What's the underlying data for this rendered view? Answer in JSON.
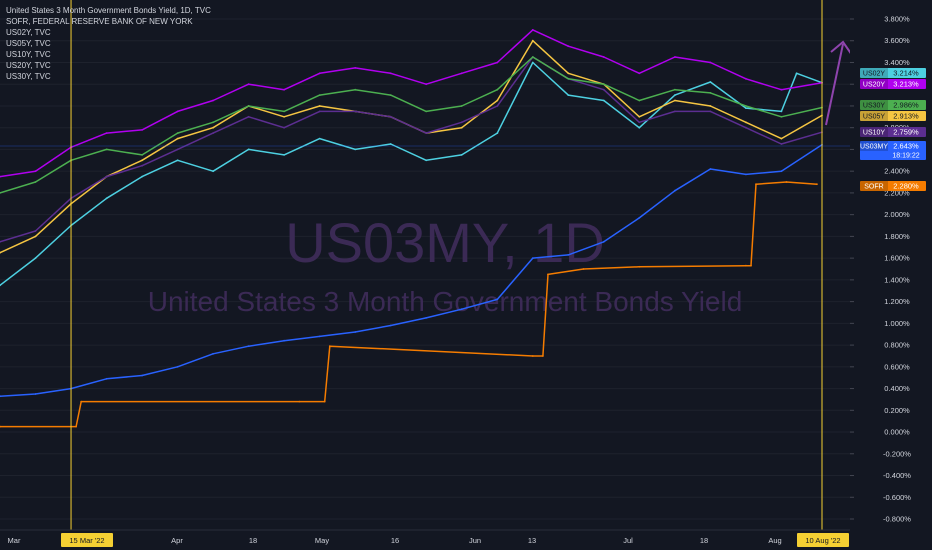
{
  "legend": {
    "title": "United States 3 Month Government Bonds Yield, 1D, TVC",
    "lines": [
      "SOFR, FEDERAL RESERVE BANK OF NEW YORK",
      "US02Y, TVC",
      "US05Y, TVC",
      "US10Y, TVC",
      "US20Y, TVC",
      "US30Y, TVC"
    ]
  },
  "watermark": {
    "symbol": "US03MY, 1D",
    "description": "United States 3 Month Government Bonds Yield"
  },
  "time_axis": {
    "labels": [
      "Mar",
      "15 Mar '22",
      "Apr",
      "18",
      "May",
      "16",
      "Jun",
      "13",
      "Jul",
      "18",
      "Aug",
      "10 Aug '22"
    ]
  },
  "badges": [
    {
      "symbol": "US02Y",
      "value": "3.214%",
      "color": "#4dd0e1"
    },
    {
      "symbol": "US20Y",
      "value": "3.213%",
      "color": "#b100f0"
    },
    {
      "symbol": "US30Y",
      "value": "2.986%",
      "color": "#4caf50"
    },
    {
      "symbol": "US05Y",
      "value": "2.913%",
      "color": "#f5c542"
    },
    {
      "symbol": "US10Y",
      "value": "2.759%",
      "color": "#5c2e91"
    },
    {
      "symbol": "US03MY",
      "value": "2.643%",
      "sub": "18:19:22",
      "color": "#2962ff"
    },
    {
      "symbol": "SOFR",
      "value": "2.280%",
      "color": "#f57c00"
    }
  ],
  "colors": {
    "background": "#131722",
    "grid": "#1e222d",
    "marker_line": "#f5d033",
    "arrow": "#8e44ad",
    "axis_text": "#d1d4dc"
  },
  "chart_data": {
    "type": "line",
    "y_axis": {
      "range": [
        -0.8,
        3.8
      ],
      "tick_labels": [
        "3.800%",
        "3.600%",
        "3.400%",
        "3.200%",
        "3.000%",
        "2.800%",
        "2.600%",
        "2.400%",
        "2.200%",
        "2.000%",
        "1.800%",
        "1.600%",
        "1.400%",
        "1.200%",
        "1.000%",
        "0.800%",
        "0.600%",
        "0.400%",
        "0.200%",
        "0.000%",
        "-0.200%",
        "-0.400%",
        "-0.600%",
        "-0.800%"
      ]
    },
    "x_range": [
      "2022-03-01",
      "2022-08-10"
    ],
    "markers": [
      "2022-03-15",
      "2022-08-10"
    ],
    "grid": true,
    "series": [
      {
        "name": "US03MY",
        "color": "#2962ff",
        "points": [
          [
            "2022-03-01",
            0.33
          ],
          [
            "2022-03-08",
            0.35
          ],
          [
            "2022-03-15",
            0.4
          ],
          [
            "2022-03-22",
            0.49
          ],
          [
            "2022-03-29",
            0.52
          ],
          [
            "2022-04-05",
            0.6
          ],
          [
            "2022-04-12",
            0.72
          ],
          [
            "2022-04-19",
            0.79
          ],
          [
            "2022-04-26",
            0.84
          ],
          [
            "2022-05-03",
            0.88
          ],
          [
            "2022-05-10",
            0.92
          ],
          [
            "2022-05-17",
            0.98
          ],
          [
            "2022-05-24",
            1.05
          ],
          [
            "2022-05-31",
            1.13
          ],
          [
            "2022-06-07",
            1.22
          ],
          [
            "2022-06-14",
            1.6
          ],
          [
            "2022-06-21",
            1.63
          ],
          [
            "2022-06-28",
            1.75
          ],
          [
            "2022-07-05",
            1.97
          ],
          [
            "2022-07-12",
            2.22
          ],
          [
            "2022-07-19",
            2.42
          ],
          [
            "2022-07-26",
            2.37
          ],
          [
            "2022-08-02",
            2.4
          ],
          [
            "2022-08-10",
            2.643
          ]
        ]
      },
      {
        "name": "SOFR",
        "color": "#f57c00",
        "points": [
          [
            "2022-03-01",
            0.05
          ],
          [
            "2022-03-16",
            0.05
          ],
          [
            "2022-03-17",
            0.28
          ],
          [
            "2022-04-29",
            0.28
          ],
          [
            "2022-05-04",
            0.28
          ],
          [
            "2022-05-05",
            0.79
          ],
          [
            "2022-06-14",
            0.7
          ],
          [
            "2022-06-16",
            0.7
          ],
          [
            "2022-06-17",
            1.45
          ],
          [
            "2022-06-24",
            1.5
          ],
          [
            "2022-07-05",
            1.52
          ],
          [
            "2022-07-26",
            1.53
          ],
          [
            "2022-07-27",
            1.53
          ],
          [
            "2022-07-28",
            2.28
          ],
          [
            "2022-08-03",
            2.3
          ],
          [
            "2022-08-09",
            2.28
          ]
        ]
      },
      {
        "name": "US02Y",
        "color": "#4dd0e1",
        "points": [
          [
            "2022-03-01",
            1.35
          ],
          [
            "2022-03-08",
            1.6
          ],
          [
            "2022-03-15",
            1.9
          ],
          [
            "2022-03-22",
            2.15
          ],
          [
            "2022-03-29",
            2.35
          ],
          [
            "2022-04-05",
            2.5
          ],
          [
            "2022-04-12",
            2.4
          ],
          [
            "2022-04-19",
            2.6
          ],
          [
            "2022-04-26",
            2.55
          ],
          [
            "2022-05-03",
            2.7
          ],
          [
            "2022-05-10",
            2.6
          ],
          [
            "2022-05-17",
            2.65
          ],
          [
            "2022-05-24",
            2.5
          ],
          [
            "2022-05-31",
            2.55
          ],
          [
            "2022-06-07",
            2.75
          ],
          [
            "2022-06-14",
            3.4
          ],
          [
            "2022-06-21",
            3.1
          ],
          [
            "2022-06-28",
            3.05
          ],
          [
            "2022-07-05",
            2.8
          ],
          [
            "2022-07-12",
            3.1
          ],
          [
            "2022-07-19",
            3.22
          ],
          [
            "2022-07-26",
            2.98
          ],
          [
            "2022-08-02",
            2.95
          ],
          [
            "2022-08-05",
            3.3
          ],
          [
            "2022-08-10",
            3.214
          ]
        ]
      },
      {
        "name": "US05Y",
        "color": "#f5c542",
        "points": [
          [
            "2022-03-01",
            1.65
          ],
          [
            "2022-03-08",
            1.8
          ],
          [
            "2022-03-15",
            2.1
          ],
          [
            "2022-03-22",
            2.35
          ],
          [
            "2022-03-29",
            2.5
          ],
          [
            "2022-04-05",
            2.7
          ],
          [
            "2022-04-12",
            2.8
          ],
          [
            "2022-04-19",
            3.0
          ],
          [
            "2022-04-26",
            2.9
          ],
          [
            "2022-05-03",
            3.0
          ],
          [
            "2022-05-10",
            2.95
          ],
          [
            "2022-05-17",
            2.9
          ],
          [
            "2022-05-24",
            2.75
          ],
          [
            "2022-05-31",
            2.8
          ],
          [
            "2022-06-07",
            3.05
          ],
          [
            "2022-06-14",
            3.6
          ],
          [
            "2022-06-21",
            3.3
          ],
          [
            "2022-06-28",
            3.2
          ],
          [
            "2022-07-05",
            2.9
          ],
          [
            "2022-07-12",
            3.05
          ],
          [
            "2022-07-19",
            3.0
          ],
          [
            "2022-07-26",
            2.85
          ],
          [
            "2022-08-02",
            2.7
          ],
          [
            "2022-08-10",
            2.913
          ]
        ]
      },
      {
        "name": "US10Y",
        "color": "#5c2e91",
        "points": [
          [
            "2022-03-01",
            1.75
          ],
          [
            "2022-03-08",
            1.85
          ],
          [
            "2022-03-15",
            2.15
          ],
          [
            "2022-03-22",
            2.35
          ],
          [
            "2022-03-29",
            2.45
          ],
          [
            "2022-04-05",
            2.6
          ],
          [
            "2022-04-12",
            2.75
          ],
          [
            "2022-04-19",
            2.9
          ],
          [
            "2022-04-26",
            2.8
          ],
          [
            "2022-05-03",
            2.95
          ],
          [
            "2022-05-10",
            2.95
          ],
          [
            "2022-05-17",
            2.9
          ],
          [
            "2022-05-24",
            2.75
          ],
          [
            "2022-05-31",
            2.85
          ],
          [
            "2022-06-07",
            3.0
          ],
          [
            "2022-06-14",
            3.45
          ],
          [
            "2022-06-21",
            3.25
          ],
          [
            "2022-06-28",
            3.15
          ],
          [
            "2022-07-05",
            2.85
          ],
          [
            "2022-07-12",
            2.95
          ],
          [
            "2022-07-19",
            2.95
          ],
          [
            "2022-07-26",
            2.8
          ],
          [
            "2022-08-02",
            2.65
          ],
          [
            "2022-08-10",
            2.759
          ]
        ]
      },
      {
        "name": "US20Y",
        "color": "#b100f0",
        "points": [
          [
            "2022-03-01",
            2.35
          ],
          [
            "2022-03-08",
            2.4
          ],
          [
            "2022-03-15",
            2.62
          ],
          [
            "2022-03-22",
            2.75
          ],
          [
            "2022-03-29",
            2.78
          ],
          [
            "2022-04-05",
            2.95
          ],
          [
            "2022-04-12",
            3.05
          ],
          [
            "2022-04-19",
            3.2
          ],
          [
            "2022-04-26",
            3.15
          ],
          [
            "2022-05-03",
            3.3
          ],
          [
            "2022-05-10",
            3.35
          ],
          [
            "2022-05-17",
            3.3
          ],
          [
            "2022-05-24",
            3.2
          ],
          [
            "2022-05-31",
            3.3
          ],
          [
            "2022-06-07",
            3.4
          ],
          [
            "2022-06-14",
            3.7
          ],
          [
            "2022-06-21",
            3.55
          ],
          [
            "2022-06-28",
            3.45
          ],
          [
            "2022-07-05",
            3.3
          ],
          [
            "2022-07-12",
            3.45
          ],
          [
            "2022-07-19",
            3.4
          ],
          [
            "2022-07-26",
            3.25
          ],
          [
            "2022-08-02",
            3.15
          ],
          [
            "2022-08-10",
            3.213
          ]
        ]
      },
      {
        "name": "US30Y",
        "color": "#4caf50",
        "points": [
          [
            "2022-03-01",
            2.2
          ],
          [
            "2022-03-08",
            2.3
          ],
          [
            "2022-03-15",
            2.5
          ],
          [
            "2022-03-22",
            2.6
          ],
          [
            "2022-03-29",
            2.55
          ],
          [
            "2022-04-05",
            2.75
          ],
          [
            "2022-04-12",
            2.85
          ],
          [
            "2022-04-19",
            3.0
          ],
          [
            "2022-04-26",
            2.95
          ],
          [
            "2022-05-03",
            3.1
          ],
          [
            "2022-05-10",
            3.15
          ],
          [
            "2022-05-17",
            3.1
          ],
          [
            "2022-05-24",
            2.95
          ],
          [
            "2022-05-31",
            3.0
          ],
          [
            "2022-06-07",
            3.15
          ],
          [
            "2022-06-14",
            3.45
          ],
          [
            "2022-06-21",
            3.25
          ],
          [
            "2022-06-28",
            3.2
          ],
          [
            "2022-07-05",
            3.05
          ],
          [
            "2022-07-12",
            3.15
          ],
          [
            "2022-07-19",
            3.12
          ],
          [
            "2022-07-26",
            3.0
          ],
          [
            "2022-08-02",
            2.9
          ],
          [
            "2022-08-10",
            2.986
          ]
        ]
      }
    ]
  }
}
